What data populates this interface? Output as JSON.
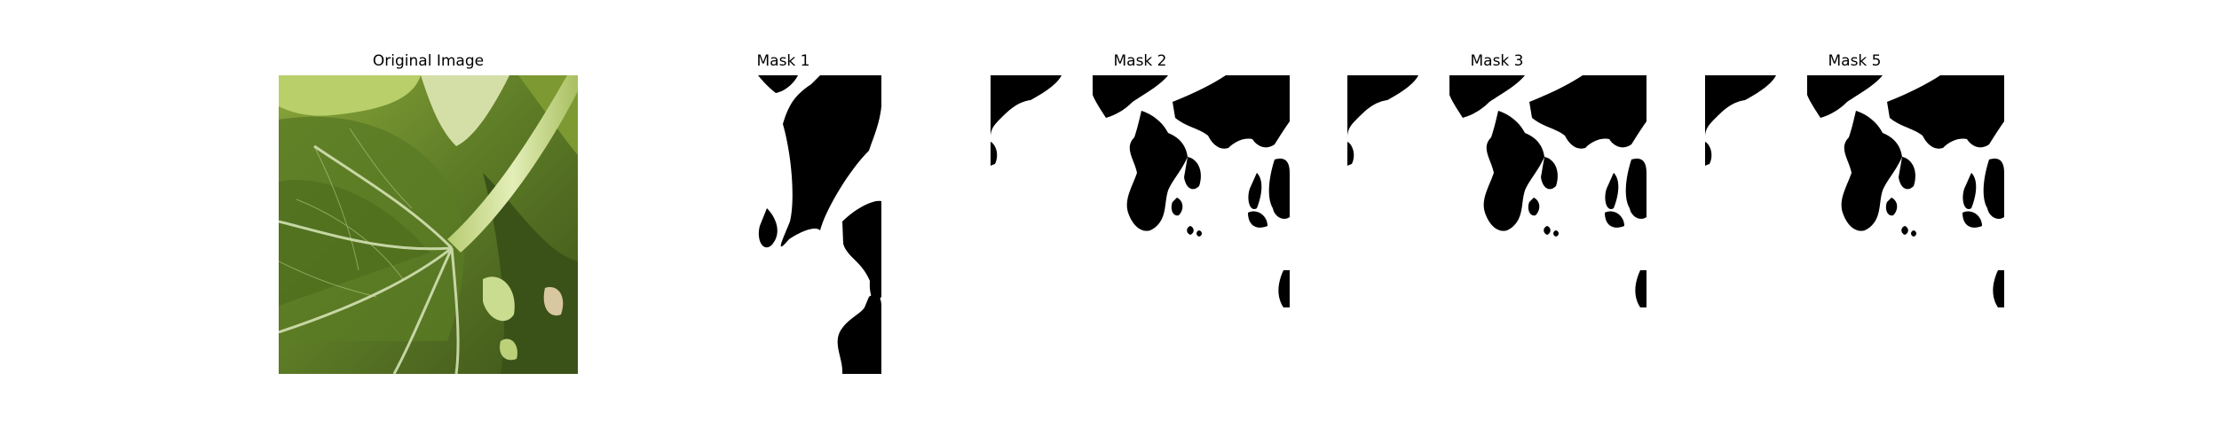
{
  "figure": {
    "panels": [
      {
        "title": "Original Image"
      },
      {
        "title": "Mask 1"
      },
      {
        "title": "Mask 2"
      },
      {
        "title": "Mask 3"
      },
      {
        "title": "Mask 5"
      }
    ]
  },
  "colors": {
    "background": "#ffffff",
    "mask_foreground": "#000000",
    "mask_background": "#ffffff",
    "leaf_dark": "#3f5a1c",
    "leaf_mid": "#6f8c2c",
    "leaf_light": "#a9c04c",
    "stem": "#cfe09a",
    "vein": "#d8e6b4"
  }
}
